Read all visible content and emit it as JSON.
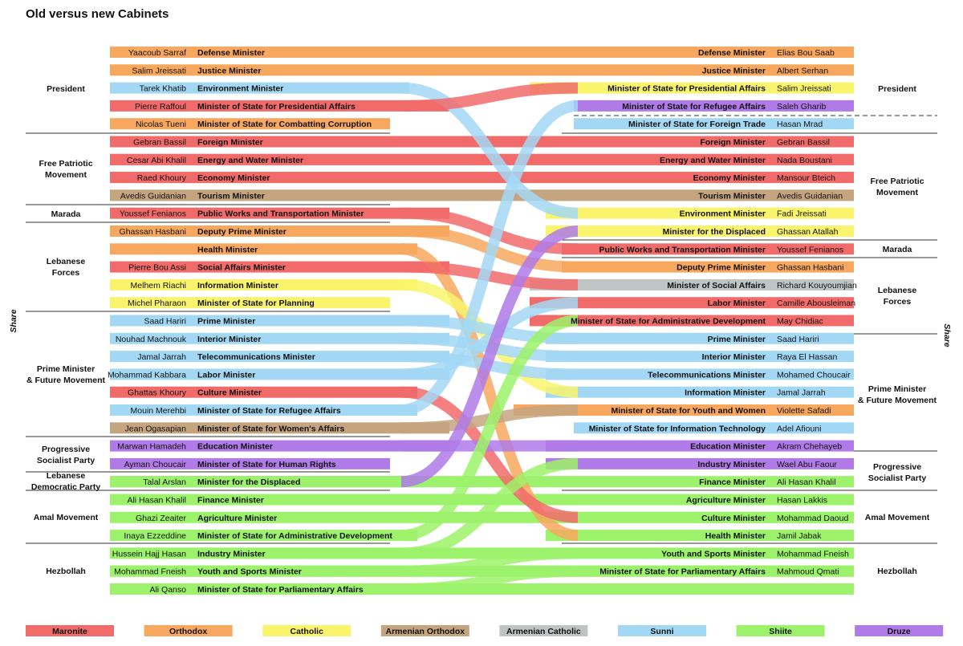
{
  "title": "Old versus new Cabinets",
  "side_label_left": "Share",
  "side_label_right": "Share",
  "colors": {
    "Maronite": "#f26b6b",
    "Orthodox": "#f7a85e",
    "Catholic": "#f9f46c",
    "Armenian Orthodox": "#c4a580",
    "Armenian Catholic": "#bfc5c5",
    "Sunni": "#a3d8f4",
    "Shiite": "#9cf26a",
    "Druze": "#b07ae8"
  },
  "legend": [
    "Maronite",
    "Orthodox",
    "Catholic",
    "Armenian Orthodox",
    "Armenian Catholic",
    "Sunni",
    "Shiite",
    "Druze"
  ],
  "old_cabinet": [
    {
      "name": "Yaacoub Sarraf",
      "post": "Defense Minister",
      "sect": "Orthodox"
    },
    {
      "name": "Salim Jreissati",
      "post": "Justice Minister",
      "sect": "Catholic"
    },
    {
      "name": "Tarek Khatib",
      "post": "Environment Minister",
      "sect": "Sunni"
    },
    {
      "name": "Pierre Raffoul",
      "post": "Minister of State for Presidential Affairs",
      "sect": "Maronite"
    },
    {
      "name": "Nicolas Tueni",
      "post": "Minister of State for Combatting Corruption",
      "sect": "Orthodox"
    },
    {
      "name": "Gebran Bassil",
      "post": "Foreign Minister",
      "sect": "Maronite"
    },
    {
      "name": "Cesar Abi Khalil",
      "post": "Energy and Water Minister",
      "sect": "Maronite"
    },
    {
      "name": "Raed Khoury",
      "post": "Economy Minister",
      "sect": "Orthodox"
    },
    {
      "name": "Avedis Guidanian",
      "post": "Tourism Minister",
      "sect": "Armenian Orthodox"
    },
    {
      "name": "Youssef Fenianos",
      "post": "Public Works and Transportation Minister",
      "sect": "Maronite"
    },
    {
      "name": "Ghassan Hasbani",
      "post": "Deputy Prime Minister",
      "sect": "Orthodox"
    },
    {
      "name": "",
      "post": "Health Minister",
      "sect": "Orthodox"
    },
    {
      "name": "Pierre Bou Assi",
      "post": "Social Affairs Minister",
      "sect": "Maronite"
    },
    {
      "name": "Melhem Riachi",
      "post": "Information Minister",
      "sect": "Catholic"
    },
    {
      "name": "Michel Pharaon",
      "post": "Minister of State for Planning",
      "sect": "Catholic"
    },
    {
      "name": "Saad Hariri",
      "post": "Prime Minister",
      "sect": "Sunni"
    },
    {
      "name": "Nouhad Machnouk",
      "post": "Interior Minister",
      "sect": "Sunni"
    },
    {
      "name": "Jamal Jarrah",
      "post": "Telecommunications Minister",
      "sect": "Sunni"
    },
    {
      "name": "Mohammad Kabbara",
      "post": "Labor Minister",
      "sect": "Sunni"
    },
    {
      "name": "Ghattas Khoury",
      "post": "Culture Minister",
      "sect": "Maronite"
    },
    {
      "name": "Mouin Merehbi",
      "post": "Minister of State for Refugee Affairs",
      "sect": "Sunni"
    },
    {
      "name": "Jean Ogasapian",
      "post": "Minister of State for Women's Affairs",
      "sect": "Armenian Orthodox"
    },
    {
      "name": "Marwan Hamadeh",
      "post": "Education Minister",
      "sect": "Druze"
    },
    {
      "name": "Ayman Choucair",
      "post": "Minister of State for Human Rights",
      "sect": "Druze"
    },
    {
      "name": "Talal Arslan",
      "post": "Minister for the Displaced",
      "sect": "Druze"
    },
    {
      "name": "Ali Hasan Khalil",
      "post": "Finance Minister",
      "sect": "Shiite"
    },
    {
      "name": "Ghazi Zeaiter",
      "post": "Agriculture Minister",
      "sect": "Shiite"
    },
    {
      "name": "Inaya Ezzeddine",
      "post": "Minister of State for Administrative Development",
      "sect": "Shiite"
    },
    {
      "name": "Hussein Hajj Hasan",
      "post": "Industry Minister",
      "sect": "Shiite"
    },
    {
      "name": "Mohammad Fneish",
      "post": "Youth and Sports Minister",
      "sect": "Shiite"
    },
    {
      "name": "Ali Qanso",
      "post": "Minister of State for Parliamentary Affairs",
      "sect": "Shiite"
    }
  ],
  "new_cabinet": [
    {
      "name": "Elias Bou Saab",
      "post": "Defense Minister",
      "sect": "Orthodox"
    },
    {
      "name": "Albert Serhan",
      "post": "Justice Minister",
      "sect": "Orthodox"
    },
    {
      "name": "Salim Jreissati",
      "post": "Minister of State for Presidential Affairs",
      "sect": "Catholic"
    },
    {
      "name": "Saleh Gharib",
      "post": "Minister of State for Refugee Affairs",
      "sect": "Druze"
    },
    {
      "name": "Hasan Mrad",
      "post": "Minister of State for Foreign Trade",
      "sect": "Sunni"
    },
    {
      "name": "Gebran Bassil",
      "post": "Foreign Minister",
      "sect": "Maronite"
    },
    {
      "name": "Nada Boustani",
      "post": "Energy and Water Minister",
      "sect": "Maronite"
    },
    {
      "name": "Mansour Bteich",
      "post": "Economy Minister",
      "sect": "Maronite"
    },
    {
      "name": "Avedis Guidanian",
      "post": "Tourism Minister",
      "sect": "Armenian Orthodox"
    },
    {
      "name": "Fadi Jreissati",
      "post": "Environment Minister",
      "sect": "Catholic"
    },
    {
      "name": "Ghassan Atallah",
      "post": "Minister for the Displaced",
      "sect": "Catholic"
    },
    {
      "name": "Youssef Fenianos",
      "post": "Public Works and Transportation Minister",
      "sect": "Maronite"
    },
    {
      "name": "Ghassan Hasbani",
      "post": "Deputy Prime Minister",
      "sect": "Orthodox"
    },
    {
      "name": "Richard Kouyoumjian",
      "post": "Minister of Social Affairs",
      "sect": "Armenian Catholic"
    },
    {
      "name": "Camille Abousleiman",
      "post": "Labor Minister",
      "sect": "Maronite"
    },
    {
      "name": "May Chidiac",
      "post": "Minister of State for Administrative Development",
      "sect": "Maronite"
    },
    {
      "name": "Saad Hariri",
      "post": "Prime Minister",
      "sect": "Sunni"
    },
    {
      "name": "Raya El Hassan",
      "post": "Interior Minister",
      "sect": "Sunni"
    },
    {
      "name": "Mohamed Choucair",
      "post": "Telecommunications Minister",
      "sect": "Sunni"
    },
    {
      "name": "Jamal Jarrah",
      "post": "Information Minister",
      "sect": "Sunni"
    },
    {
      "name": "Violette Safadi",
      "post": "Minister of State for Youth and Women",
      "sect": "Orthodox"
    },
    {
      "name": "Adel Afiouni",
      "post": "Minister of State for Information Technology",
      "sect": "Sunni"
    },
    {
      "name": "Akram Chehayeb",
      "post": "Education Minister",
      "sect": "Druze"
    },
    {
      "name": "Wael Abu Faour",
      "post": "Industry Minister",
      "sect": "Druze"
    },
    {
      "name": "Ali Hasan Khalil",
      "post": "Finance Minister",
      "sect": "Shiite"
    },
    {
      "name": "Hasan Lakkis",
      "post": "Agriculture Minister",
      "sect": "Shiite"
    },
    {
      "name": "Mohammad Daoud",
      "post": "Culture Minister",
      "sect": "Shiite"
    },
    {
      "name": "Jamil Jabak",
      "post": "Health Minister",
      "sect": "Shiite"
    },
    {
      "name": "Mohammad Fneish",
      "post": "Youth and Sports Minister",
      "sect": "Shiite"
    },
    {
      "name": "Mahmoud Qmati",
      "post": "Minister of State for Parliamentary Affairs",
      "sect": "Shiite"
    }
  ],
  "old_groups": [
    {
      "label1": "President",
      "label2": ""
    },
    {
      "label1": "Free Patriotic",
      "label2": "Movement"
    },
    {
      "label1": "Marada",
      "label2": ""
    },
    {
      "label1": "Lebanese",
      "label2": "Forces"
    },
    {
      "label1": "Prime Minister",
      "label2": "& Future Movement"
    },
    {
      "label1": "Progressive",
      "label2": "Socialist Party"
    },
    {
      "label1": "Lebanese",
      "label2": "Democratic Party"
    },
    {
      "label1": "Amal Movement",
      "label2": ""
    },
    {
      "label1": "Hezbollah",
      "label2": ""
    }
  ],
  "new_groups": [
    {
      "label1": "President",
      "label2": ""
    },
    {
      "label1": "Free Patriotic",
      "label2": "Movement"
    },
    {
      "label1": "Marada",
      "label2": ""
    },
    {
      "label1": "Lebanese",
      "label2": "Forces"
    },
    {
      "label1": "Prime Minister",
      "label2": "& Future Movement"
    },
    {
      "label1": "Progressive",
      "label2": "Socialist Party"
    },
    {
      "label1": "Amal Movement",
      "label2": ""
    },
    {
      "label1": "Hezbollah",
      "label2": ""
    }
  ]
}
